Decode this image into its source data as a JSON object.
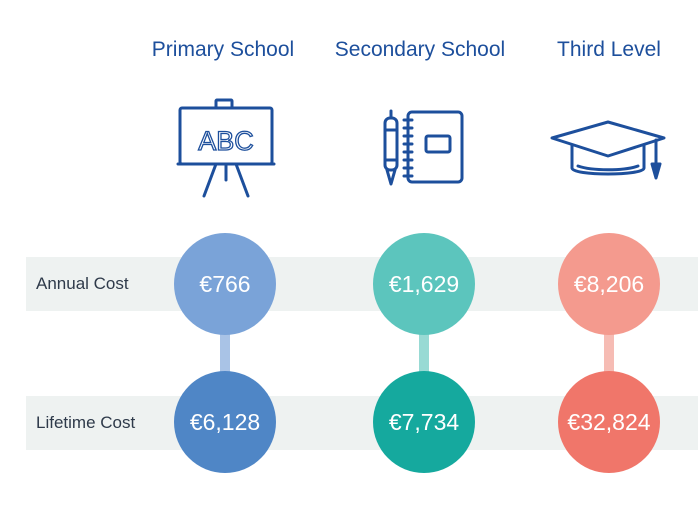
{
  "columns": [
    {
      "heading": "Primary School",
      "icon": "easel-abc-icon",
      "icon_text": "ABC",
      "annual_cost": "€766",
      "lifetime_cost": "€6,128",
      "annual_color": "#7aa3d8",
      "lifetime_color": "#4f86c6",
      "connector_color": "#a9c3e6"
    },
    {
      "heading": "Secondary School",
      "icon": "notebook-and-pen-icon",
      "annual_cost": "€1,629",
      "lifetime_cost": "€7,734",
      "annual_color": "#5cc5bd",
      "lifetime_color": "#15a99e",
      "connector_color": "#98dad4"
    },
    {
      "heading": "Third Level",
      "icon": "graduation-cap-icon",
      "annual_cost": "€8,206",
      "lifetime_cost": "€32,824",
      "annual_color": "#f49a8e",
      "lifetime_color": "#f0766a",
      "connector_color": "#f6bcb4"
    }
  ],
  "rows": {
    "annual_label": "Annual Cost",
    "lifetime_label": "Lifetime Cost"
  },
  "colors": {
    "heading": "#1d4f9c",
    "icon_stroke": "#1d4f9c",
    "band": "#eef2f1",
    "label_text": "#2e3a4a"
  }
}
